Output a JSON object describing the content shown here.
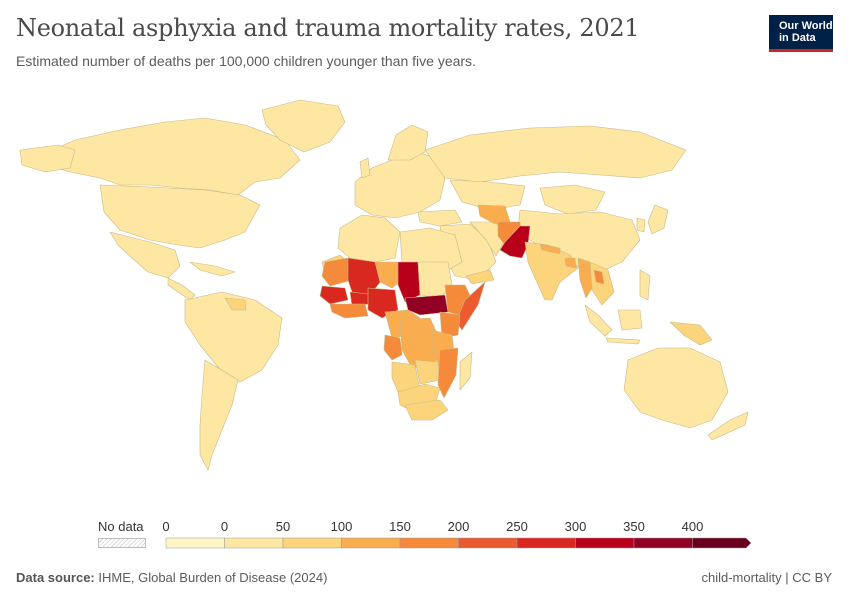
{
  "header": {
    "title": "Neonatal asphyxia and trauma mortality rates, 2021",
    "subtitle": "Estimated number of deaths per 100,000 children younger than five years."
  },
  "logo": {
    "line1": "Our World",
    "line2": "in Data",
    "bg_color": "#002147",
    "accent_color": "#ce261e"
  },
  "legend": {
    "no_data_label": "No data",
    "tick_labels": [
      "0",
      "0",
      "50",
      "100",
      "150",
      "200",
      "250",
      "300",
      "350",
      "400"
    ],
    "bins": [
      {
        "from": 0,
        "to": 0,
        "color": "#fef6c4"
      },
      {
        "from": 0,
        "to": 50,
        "color": "#fde7a2"
      },
      {
        "from": 50,
        "to": 100,
        "color": "#fcd47b"
      },
      {
        "from": 100,
        "to": 150,
        "color": "#f9ad4f"
      },
      {
        "from": 150,
        "to": 200,
        "color": "#f48a3a"
      },
      {
        "from": 200,
        "to": 250,
        "color": "#ec5a2f"
      },
      {
        "from": 250,
        "to": 300,
        "color": "#d8281f"
      },
      {
        "from": 300,
        "to": 350,
        "color": "#b9001b"
      },
      {
        "from": 350,
        "to": 400,
        "color": "#920023"
      },
      {
        "from": 400,
        "to": null,
        "color": "#6a0020"
      }
    ]
  },
  "map": {
    "colors": {
      "ocean": "#ffffff",
      "level_low": "#fde7a2",
      "level_50_100": "#fcd47b",
      "level_100_150": "#f9ad4f",
      "level_150_200": "#f48a3a",
      "level_200_250": "#ec5a2f",
      "level_250_300": "#d8281f",
      "level_300_350": "#b9001b"
    }
  },
  "footer": {
    "source_label": "Data source:",
    "source_text": "IHME, Global Burden of Disease (2024)",
    "right_text": "child-mortality | CC BY"
  }
}
